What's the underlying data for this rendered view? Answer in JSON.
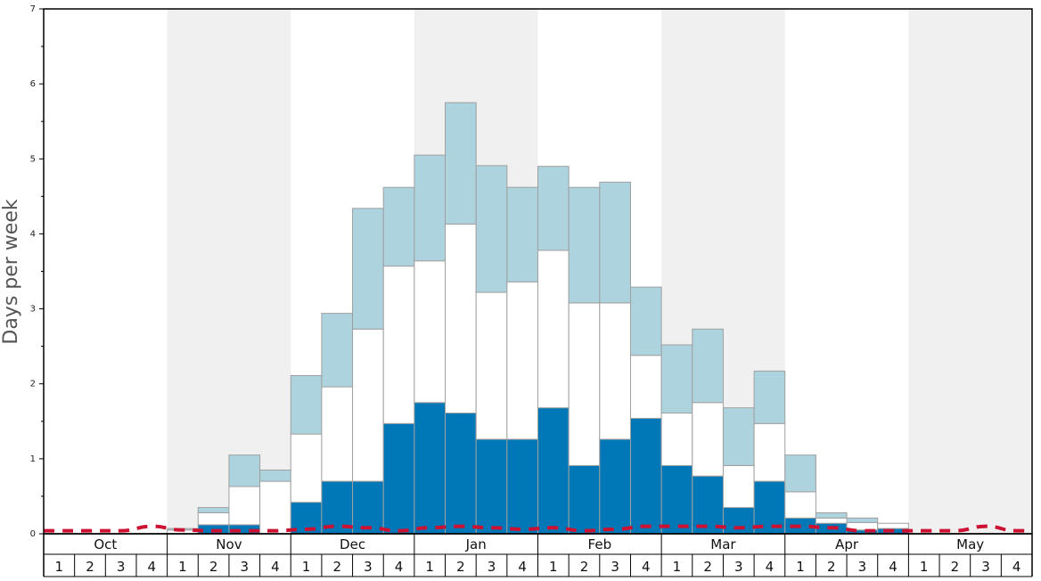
{
  "chart_data": {
    "type": "bar",
    "stacked": true,
    "ylabel": "Days per week",
    "ylim": [
      0,
      7
    ],
    "yticks": [
      0,
      1,
      2,
      3,
      4,
      5,
      6,
      7
    ],
    "grid": false,
    "months": [
      "Oct",
      "Nov",
      "Dec",
      "Jan",
      "Feb",
      "Mar",
      "Apr",
      "May"
    ],
    "weeks_per_month": [
      "1",
      "2",
      "3",
      "4"
    ],
    "colors": {
      "bottom": "#0077b6",
      "middle": "#ffffff",
      "top": "#add3df",
      "line": "#cc1133",
      "band_shade": "#f0f0f0",
      "bar_edge": "#a0a0a0"
    },
    "series": [
      {
        "values": [
          0,
          0,
          0,
          0,
          0,
          0.12,
          0.12,
          0,
          0.42,
          0.7,
          0.7,
          1.47,
          1.75,
          1.61,
          1.26,
          1.26,
          1.68,
          0.91,
          1.26,
          1.54,
          0.91,
          0.77,
          0.35,
          0.7,
          0.21,
          0.14,
          0.05,
          0.07,
          0,
          0,
          0,
          0
        ]
      },
      {
        "values": [
          0,
          0,
          0,
          0,
          0.05,
          0.16,
          0.51,
          0.7,
          0.91,
          1.26,
          2.03,
          2.1,
          1.89,
          2.52,
          1.96,
          2.1,
          2.1,
          2.17,
          1.82,
          0.84,
          0.7,
          0.98,
          0.56,
          0.77,
          0.35,
          0.07,
          0.1,
          0.07,
          0,
          0,
          0,
          0
        ]
      },
      {
        "values": [
          0,
          0,
          0,
          0,
          0.02,
          0.07,
          0.42,
          0.15,
          0.78,
          0.98,
          1.61,
          1.05,
          1.41,
          1.62,
          1.69,
          1.26,
          1.12,
          1.54,
          1.61,
          0.91,
          0.91,
          0.98,
          0.77,
          0.7,
          0.49,
          0.07,
          0.06,
          0,
          0,
          0,
          0,
          0
        ]
      },
      {
        "type": "line",
        "style": "dashed",
        "values": [
          0.04,
          0.04,
          0.04,
          0.1,
          0.05,
          0.04,
          0.04,
          0.04,
          0.06,
          0.1,
          0.08,
          0.04,
          0.08,
          0.1,
          0.08,
          0.06,
          0.08,
          0.04,
          0.06,
          0.1,
          0.1,
          0.1,
          0.08,
          0.1,
          0.1,
          0.08,
          0.04,
          0.04,
          0.04,
          0.04,
          0.1,
          0.04
        ]
      }
    ]
  }
}
